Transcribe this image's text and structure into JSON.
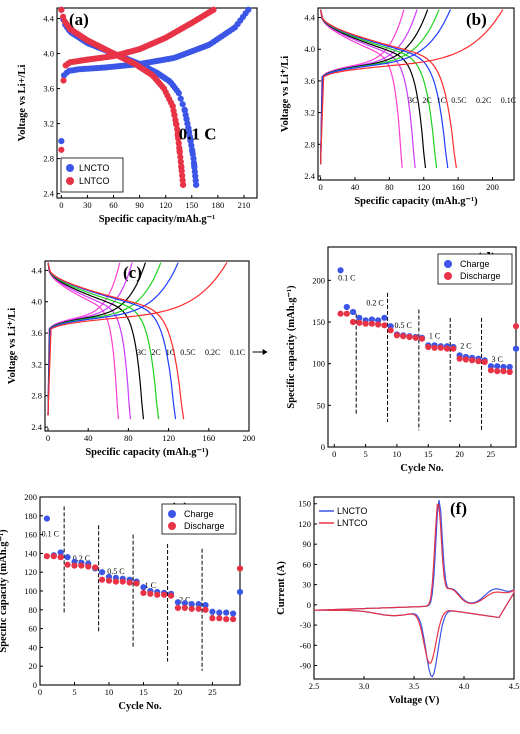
{
  "colors": {
    "blue": "#3b55e6",
    "red": "#e83346",
    "c3": "#ff3fd2",
    "c2": "#cc3bff",
    "c1": "#000000",
    "c05": "#1fd11f",
    "c02": "#1f3dff",
    "c01": "#ff2b2b"
  },
  "chart_data": [
    {
      "id": "a",
      "type": "scatter",
      "panel_label": "(a)",
      "xlabel": "Specific capacity/mAh.g⁻¹",
      "ylabel": "Voltage vs Li+/Li",
      "xlim": [
        -5,
        225
      ],
      "ylim": [
        2.35,
        4.52
      ],
      "xticks": [
        "0",
        "30",
        "60",
        "90",
        "120",
        "150",
        "180",
        "210"
      ],
      "yticks": [
        "2.4",
        "2.8",
        "3.2",
        "3.6",
        "4.0",
        "4.4"
      ],
      "annotation": "0.1 C",
      "legend": [
        "LNCTO",
        "LNTCO"
      ],
      "series": [
        {
          "name": "LNCTO",
          "color": "blue",
          "charge": {
            "cap": [
              0,
              3,
              8,
              20,
              50,
              90,
              130,
              170,
              200,
              215
            ],
            "v": [
              3.0,
              3.75,
              3.8,
              3.82,
              3.84,
              3.88,
              3.95,
              4.1,
              4.3,
              4.5
            ]
          },
          "discharge": {
            "cap": [
              0,
              3,
              10,
              30,
              60,
              90,
              110,
              125,
              135,
              142,
              147,
              152,
              155
            ],
            "v": [
              4.5,
              4.35,
              4.25,
              4.12,
              4.0,
              3.88,
              3.78,
              3.68,
              3.55,
              3.35,
              3.1,
              2.8,
              2.5
            ]
          }
        },
        {
          "name": "LNTCO",
          "color": "red",
          "charge": {
            "cap": [
              0,
              3,
              10,
              30,
              60,
              90,
              120,
              150,
              175
            ],
            "v": [
              2.9,
              3.85,
              3.9,
              3.93,
              3.97,
              4.05,
              4.18,
              4.35,
              4.5
            ]
          },
          "discharge": {
            "cap": [
              0,
              3,
              10,
              30,
              60,
              85,
              105,
              118,
              128,
              133,
              137,
              140
            ],
            "v": [
              4.5,
              4.38,
              4.28,
              4.15,
              4.0,
              3.88,
              3.75,
              3.6,
              3.4,
              3.15,
              2.8,
              2.5
            ]
          }
        }
      ]
    },
    {
      "id": "b",
      "type": "line",
      "panel_label": "(b)",
      "xlabel": "Specific capacity (mAh.g⁻¹)",
      "ylabel": "Voltage vs Li⁺/Li",
      "xlim": [
        -3,
        225
      ],
      "ylim": [
        2.35,
        4.52
      ],
      "xticks": [
        "0",
        "40",
        "80",
        "120",
        "160",
        "200"
      ],
      "yticks": [
        "2.4",
        "2.8",
        "3.2",
        "3.6",
        "4.0",
        "4.4"
      ],
      "rates": [
        "3C",
        "2C",
        "1C",
        "0.5C",
        "0.2C",
        "0.1C"
      ],
      "series": [
        {
          "name": "3C",
          "color": "c3",
          "cap": 95
        },
        {
          "name": "2C",
          "color": "c2",
          "cap": 110
        },
        {
          "name": "1C",
          "color": "c1",
          "cap": 122
        },
        {
          "name": "0.5C",
          "color": "c05",
          "cap": 135
        },
        {
          "name": "0.2C",
          "color": "c02",
          "cap": 148
        },
        {
          "name": "0.1C",
          "color": "c01",
          "cap": 158,
          "charge_cap": 212
        }
      ]
    },
    {
      "id": "c",
      "type": "line",
      "panel_label": "(c)",
      "xlabel": "Specific capacity (mAh.g⁻¹)",
      "ylabel": "Voltage vs Li⁺/Li",
      "xlim": [
        -3,
        200
      ],
      "ylim": [
        2.35,
        4.52
      ],
      "xticks": [
        "0",
        "40",
        "80",
        "120",
        "160",
        "200"
      ],
      "yticks": [
        "2.4",
        "2.8",
        "3.2",
        "3.6",
        "4.0",
        "4.4"
      ],
      "rates": [
        "3C",
        "2C",
        "1C",
        "0.5C",
        "0.2C",
        "0.1C"
      ],
      "series": [
        {
          "name": "3C",
          "color": "c3",
          "cap": 70
        },
        {
          "name": "2C",
          "color": "c2",
          "cap": 82
        },
        {
          "name": "1C",
          "color": "c1",
          "cap": 95
        },
        {
          "name": "0.5C",
          "color": "c05",
          "cap": 110
        },
        {
          "name": "0.2C",
          "color": "c02",
          "cap": 127
        },
        {
          "name": "0.1C",
          "color": "c01",
          "cap": 135,
          "charge_cap": 178
        }
      ]
    },
    {
      "id": "d",
      "type": "scatter",
      "panel_label": "(d)",
      "xlabel": "Cycle No.",
      "ylabel": "Specific capacity (mAh.g⁻¹)",
      "xlim": [
        -1,
        29
      ],
      "ylim": [
        0,
        240
      ],
      "xticks": [
        "0",
        "5",
        "10",
        "15",
        "20",
        "25"
      ],
      "yticks": [
        "0",
        "50",
        "100",
        "150",
        "200"
      ],
      "legend": [
        "Charge",
        "Discharge"
      ],
      "rate_labels": [
        "0.1 C",
        "0.2 C",
        "0.5 C",
        "1 C",
        "2 C",
        "3 C"
      ],
      "dividers": [
        3.5,
        8.5,
        13.5,
        18.5,
        23.5
      ],
      "charge": [
        212,
        168,
        162,
        155,
        152,
        153,
        152,
        155,
        145,
        135,
        134,
        133,
        132,
        131,
        122,
        122,
        121,
        121,
        120,
        110,
        108,
        107,
        106,
        104,
        97,
        97,
        96,
        96,
        118
      ],
      "discharge": [
        160,
        160,
        150,
        149,
        148,
        148,
        147,
        146,
        140,
        134,
        133,
        132,
        131,
        130,
        120,
        119,
        119,
        118,
        118,
        106,
        105,
        104,
        103,
        102,
        92,
        91,
        91,
        90,
        145
      ]
    },
    {
      "id": "e",
      "type": "scatter",
      "panel_label": "(e)",
      "xlabel": "Cycle No.",
      "ylabel": "Specific capacity (mAh.g⁻¹)",
      "xlim": [
        0,
        29
      ],
      "ylim": [
        0,
        200
      ],
      "xticks": [
        "0",
        "5",
        "10",
        "15",
        "20",
        "25"
      ],
      "yticks": [
        "0",
        "20",
        "40",
        "60",
        "80",
        "100",
        "120",
        "140",
        "160",
        "180",
        "200"
      ],
      "legend": [
        "Charge",
        "Discharge"
      ],
      "rate_labels": [
        "0.1 C",
        "0.2 C",
        "0.5 C",
        "1 C",
        "2 C",
        "3 C"
      ],
      "dividers": [
        3.5,
        8.5,
        13.5,
        18.5,
        23.5
      ],
      "charge": [
        177,
        138,
        141,
        136,
        131,
        130,
        129,
        124,
        120,
        115,
        114,
        113,
        112,
        110,
        104,
        100,
        99,
        98,
        97,
        88,
        87,
        86,
        86,
        85,
        78,
        77,
        77,
        76,
        99
      ],
      "discharge": [
        137,
        137,
        136,
        128,
        127,
        127,
        126,
        125,
        112,
        111,
        110,
        110,
        109,
        108,
        98,
        97,
        96,
        96,
        95,
        82,
        82,
        81,
        81,
        80,
        71,
        71,
        70,
        70,
        124
      ]
    },
    {
      "id": "f",
      "type": "line",
      "panel_label": "(f)",
      "xlabel": "Voltage (V)",
      "ylabel": "Current (A)",
      "xlim": [
        2.5,
        4.5
      ],
      "ylim": [
        -110,
        160
      ],
      "xticks": [
        "2.5",
        "3.0",
        "3.5",
        "4.0",
        "4.5"
      ],
      "yticks": [
        "-90",
        "-60",
        "-30",
        "0",
        "30",
        "60",
        "90",
        "120",
        "150"
      ],
      "legend": [
        "LNCTO",
        "LNTCO"
      ],
      "series": [
        {
          "name": "LNCTO",
          "color": "blue",
          "peak_ox": [
            3.75,
            148
          ],
          "peak_red": [
            3.68,
            -98
          ]
        },
        {
          "name": "LNTCO",
          "color": "red",
          "peak_ox": [
            3.74,
            146
          ],
          "peak_red": [
            3.66,
            -78
          ]
        }
      ]
    }
  ]
}
